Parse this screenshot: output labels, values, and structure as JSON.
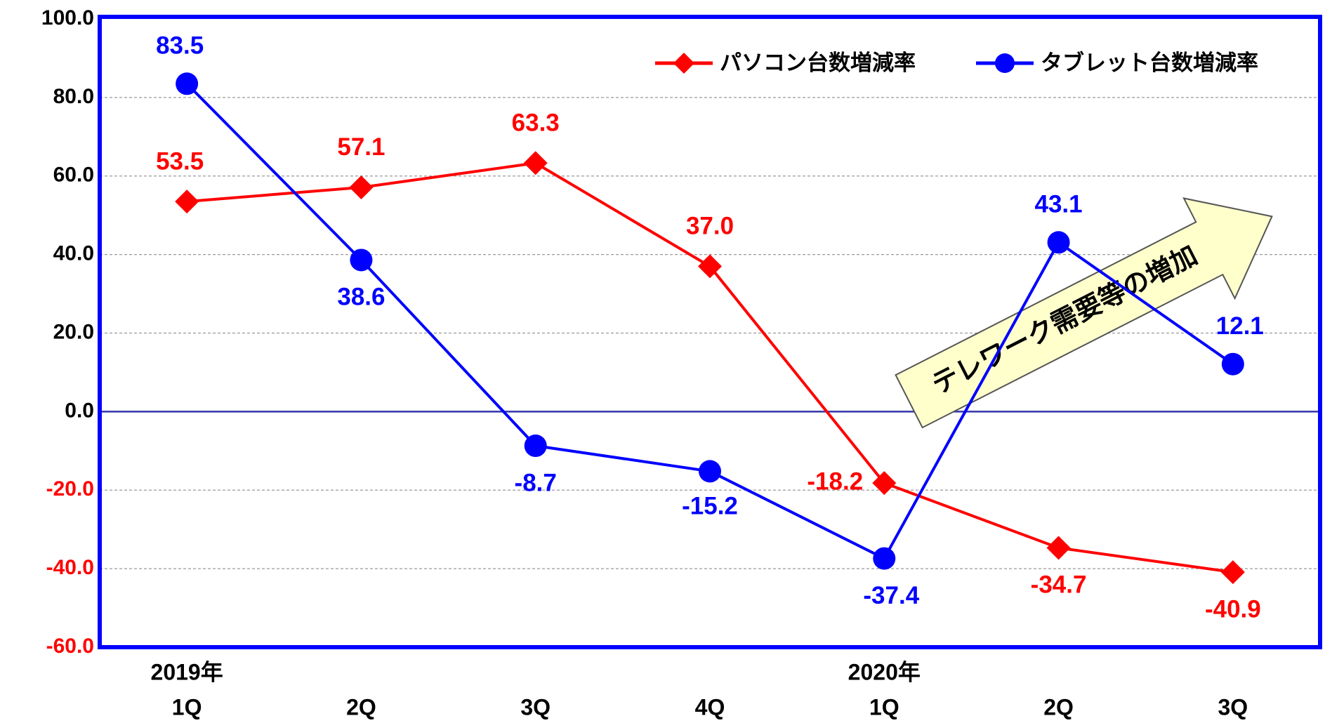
{
  "chart_data": {
    "type": "line",
    "categories": [
      "1Q",
      "2Q",
      "3Q",
      "4Q",
      "1Q",
      "2Q",
      "3Q"
    ],
    "year_labels": [
      "2019年",
      null,
      null,
      null,
      "2020年",
      null,
      null
    ],
    "series": [
      {
        "name": "パソコン台数増減率",
        "color": "#ff0000",
        "marker": "diamond",
        "values": [
          53.5,
          57.1,
          63.3,
          37.0,
          -18.2,
          -34.7,
          -40.9
        ],
        "value_labels": [
          "53.5",
          "57.1",
          "63.3",
          "37.0",
          "-18.2",
          "-34.7",
          "-40.9"
        ]
      },
      {
        "name": "タブレット台数増減率",
        "color": "#0000ff",
        "marker": "circle",
        "values": [
          83.5,
          38.6,
          -8.7,
          -15.2,
          -37.4,
          43.1,
          12.1
        ],
        "value_labels": [
          "83.5",
          "38.6",
          "-8.7",
          "-15.2",
          "-37.4",
          "43.1",
          "12.1"
        ]
      }
    ],
    "ylim": [
      -60,
      100
    ],
    "yticks": [
      {
        "value": -60,
        "label": "-60.0"
      },
      {
        "value": -40,
        "label": "-40.0"
      },
      {
        "value": -20,
        "label": "-20.0"
      },
      {
        "value": 0,
        "label": "0.0"
      },
      {
        "value": 20,
        "label": "20.0"
      },
      {
        "value": 40,
        "label": "40.0"
      },
      {
        "value": 60,
        "label": "60.0"
      },
      {
        "value": 80,
        "label": "80.0"
      },
      {
        "value": 100,
        "label": "100.0"
      }
    ],
    "grid": true,
    "negative_tick_color": "#ff0000",
    "legend": "upper right",
    "annotation": "テレワーク需要等の増加"
  }
}
